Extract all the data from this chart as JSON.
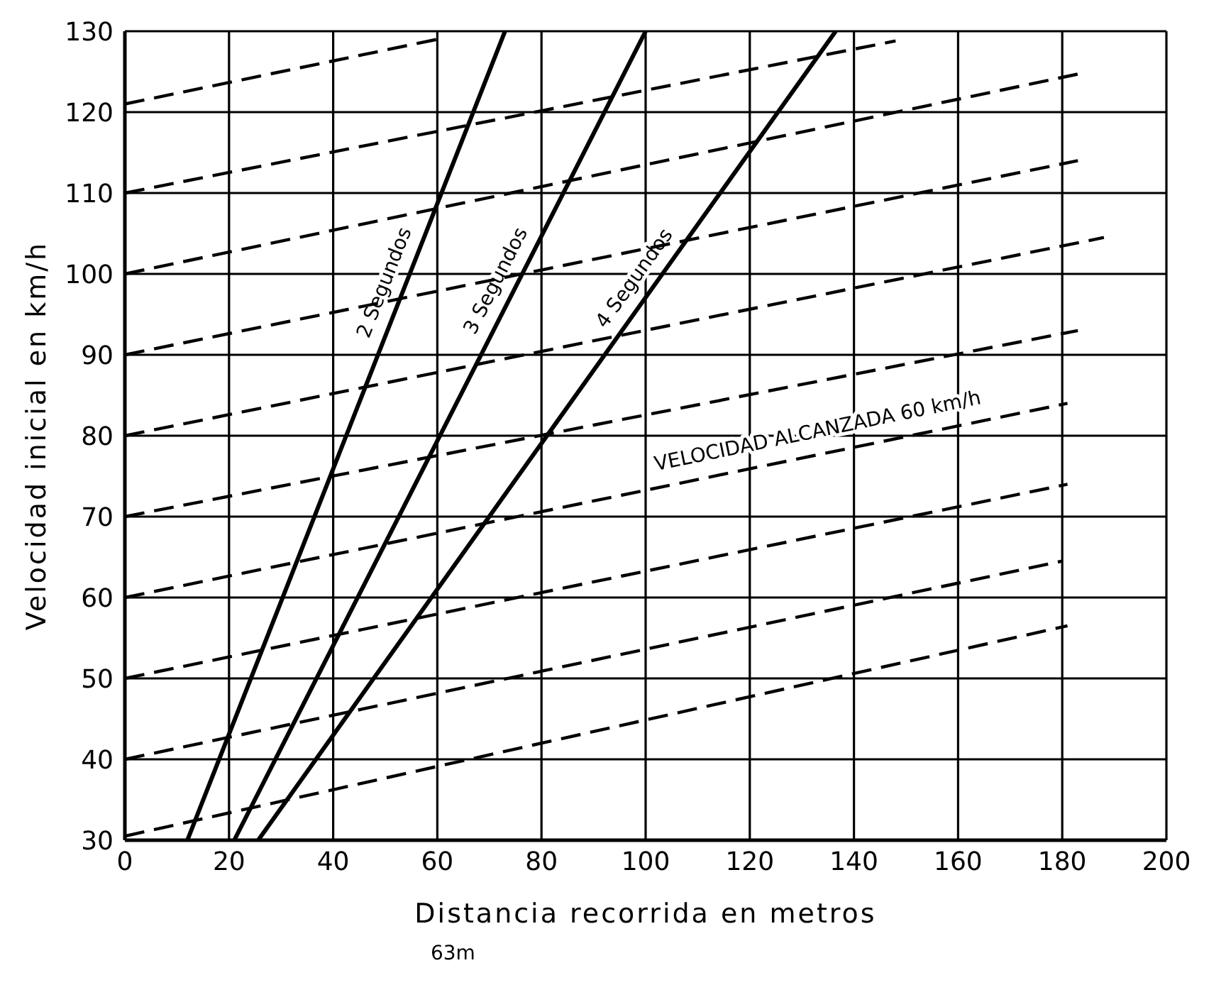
{
  "chart_data": {
    "type": "line",
    "xlabel": "Distancia recorrida en metros",
    "ylabel": "Velocidad inicial en km/h",
    "xlim": [
      0,
      200
    ],
    "ylim": [
      30,
      130
    ],
    "xticks": [
      0,
      20,
      40,
      60,
      80,
      100,
      120,
      140,
      160,
      180,
      200
    ],
    "yticks": [
      30,
      40,
      50,
      60,
      70,
      80,
      90,
      100,
      110,
      120,
      130
    ],
    "grid": true,
    "marker": "none",
    "annotations": [
      "63m"
    ],
    "series": [
      {
        "color": "#000000",
        "line_style": "dashed",
        "x": [
          0,
          181
        ],
        "values": [
          30.5,
          56.5
        ]
      },
      {
        "color": "#000000",
        "line_style": "dashed",
        "x": [
          0,
          180
        ],
        "values": [
          40,
          64.5
        ]
      },
      {
        "color": "#000000",
        "line_style": "dashed",
        "x": [
          0,
          181
        ],
        "values": [
          50,
          74
        ]
      },
      {
        "name": "VELOCIDAD ALCANZADA 60 km/h",
        "color": "#000000",
        "line_style": "dashed",
        "x": [
          0,
          181
        ],
        "values": [
          60,
          84
        ]
      },
      {
        "color": "#000000",
        "line_style": "dashed",
        "x": [
          0,
          183
        ],
        "values": [
          70,
          93
        ]
      },
      {
        "color": "#000000",
        "line_style": "dashed",
        "x": [
          0,
          188
        ],
        "values": [
          80,
          104.5
        ]
      },
      {
        "color": "#000000",
        "line_style": "dashed",
        "x": [
          0,
          183
        ],
        "values": [
          90,
          114
        ]
      },
      {
        "color": "#000000",
        "line_style": "dashed",
        "x": [
          0,
          183
        ],
        "values": [
          100,
          124.7
        ]
      },
      {
        "color": "#000000",
        "line_style": "dashed",
        "x": [
          0,
          148
        ],
        "values": [
          110,
          128.8
        ]
      },
      {
        "color": "#000000",
        "line_style": "dashed",
        "x": [
          0,
          60
        ],
        "values": [
          121,
          129
        ]
      },
      {
        "name": "2 Segundos",
        "color": "#000000",
        "line_style": "solid",
        "x": [
          12,
          73
        ],
        "values": [
          30,
          130
        ]
      },
      {
        "name": "3 Segundos",
        "color": "#000000",
        "line_style": "solid",
        "x": [
          21,
          100
        ],
        "values": [
          30,
          130
        ]
      },
      {
        "name": "4 Segundos",
        "color": "#000000",
        "line_style": "solid",
        "x": [
          25.6,
          136.5
        ],
        "values": [
          30,
          130
        ]
      }
    ]
  }
}
